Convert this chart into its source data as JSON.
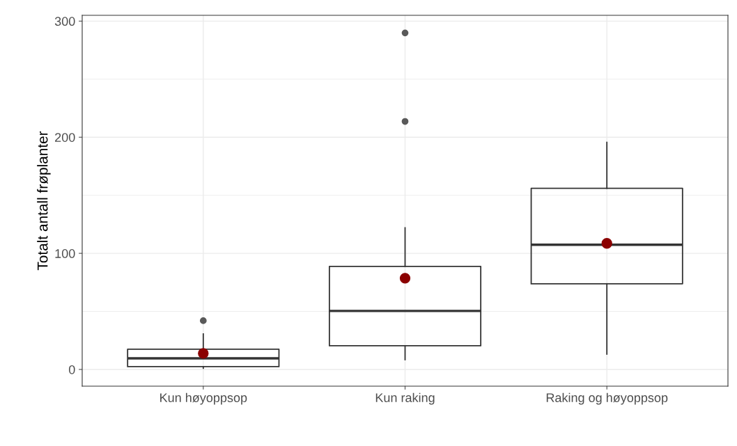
{
  "chart_data": {
    "type": "box",
    "ylabel": "Totalt antall frøplanter",
    "categories": [
      "Kun høyoppsop",
      "Kun raking",
      "Raking og høyoppsop"
    ],
    "boxes": [
      {
        "low": 1,
        "q1": 2.4,
        "median": 9.6,
        "q3": 17.4,
        "high": 30.6,
        "mean": 13.8,
        "outliers": [
          42
        ]
      },
      {
        "low": 8.4,
        "q1": 20.4,
        "median": 50.4,
        "q3": 88.8,
        "high": 122,
        "mean": 78.6,
        "outliers": [
          213.6,
          289.8
        ]
      },
      {
        "low": 13.2,
        "q1": 73.8,
        "median": 107.4,
        "q3": 156,
        "high": 195.6,
        "mean": 108.6
      }
    ],
    "color": "#333333",
    "ylim": [
      -14.4,
      305
    ],
    "yticks": [
      0,
      100,
      200,
      300
    ],
    "grid": true
  }
}
